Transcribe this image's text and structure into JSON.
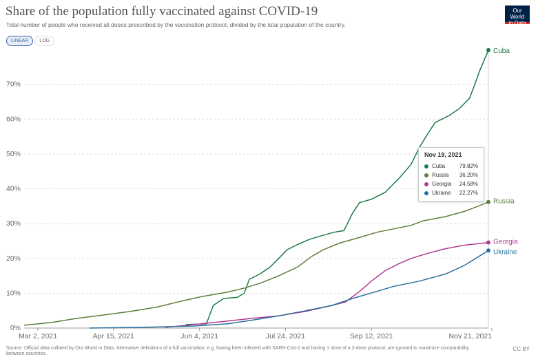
{
  "header": {
    "title": "Share of the population fully vaccinated against COVID-19",
    "subtitle": "Total number of people who received all doses prescribed by the vaccination protocol, divided by the total population of the country.",
    "logo_line1": "Our World",
    "logo_line2": "in Data"
  },
  "scale_toggle": {
    "linear": "LINEAR",
    "log": "LOG",
    "selected": "LINEAR"
  },
  "chart_data": {
    "type": "line",
    "title": "Share of the population fully vaccinated against COVID-19",
    "xlabel": "",
    "ylabel": "",
    "x_start": "2021-02-22",
    "x_end": "2021-11-19",
    "ylim": [
      0,
      80
    ],
    "grid": true,
    "y_ticks": [
      0,
      10,
      20,
      30,
      40,
      50,
      60,
      70
    ],
    "y_tick_labels": [
      "0%",
      "10%",
      "20%",
      "30%",
      "40%",
      "50%",
      "60%",
      "70%"
    ],
    "x_ticks": [
      "2021-03-02",
      "2021-04-15",
      "2021-06-04",
      "2021-07-24",
      "2021-09-12",
      "2021-11-21"
    ],
    "x_tick_labels": [
      "Mar 2, 2021",
      "Apr 15, 2021",
      "Jun 4, 2021",
      "Jul 24, 2021",
      "Sep 12, 2021",
      "Nov 21, 2021"
    ],
    "series": [
      {
        "name": "Cuba",
        "color": "#1c7a44",
        "points": [
          [
            "2021-05-27",
            1.0
          ],
          [
            "2021-06-08",
            1.2
          ],
          [
            "2021-06-12",
            6.5
          ],
          [
            "2021-06-18",
            8.5
          ],
          [
            "2021-06-26",
            8.8
          ],
          [
            "2021-06-30",
            10.0
          ],
          [
            "2021-07-03",
            14.0
          ],
          [
            "2021-07-09",
            15.5
          ],
          [
            "2021-07-15",
            17.5
          ],
          [
            "2021-07-20",
            20.0
          ],
          [
            "2021-07-25",
            22.5
          ],
          [
            "2021-07-31",
            24.0
          ],
          [
            "2021-08-07",
            25.5
          ],
          [
            "2021-08-14",
            26.5
          ],
          [
            "2021-08-21",
            27.5
          ],
          [
            "2021-08-27",
            28.0
          ],
          [
            "2021-09-01",
            33.0
          ],
          [
            "2021-09-05",
            36.0
          ],
          [
            "2021-09-12",
            37.0
          ],
          [
            "2021-09-20",
            39.0
          ],
          [
            "2021-09-28",
            43.0
          ],
          [
            "2021-10-05",
            47.0
          ],
          [
            "2021-10-10",
            52.0
          ],
          [
            "2021-10-15",
            56.0
          ],
          [
            "2021-10-19",
            59.0
          ],
          [
            "2021-10-27",
            61.0
          ],
          [
            "2021-11-02",
            63.0
          ],
          [
            "2021-11-08",
            66.0
          ],
          [
            "2021-11-10",
            68.5
          ],
          [
            "2021-11-14",
            74.0
          ],
          [
            "2021-11-19",
            79.82
          ]
        ]
      },
      {
        "name": "Russia",
        "color": "#5e7e3d",
        "points": [
          [
            "2021-02-22",
            0.8
          ],
          [
            "2021-03-10",
            1.6
          ],
          [
            "2021-03-25",
            2.8
          ],
          [
            "2021-04-10",
            3.8
          ],
          [
            "2021-04-25",
            4.8
          ],
          [
            "2021-05-10",
            6.0
          ],
          [
            "2021-05-25",
            7.8
          ],
          [
            "2021-06-05",
            9.0
          ],
          [
            "2021-06-20",
            10.3
          ],
          [
            "2021-07-01",
            11.6
          ],
          [
            "2021-07-10",
            13.0
          ],
          [
            "2021-07-20",
            15.0
          ],
          [
            "2021-07-31",
            17.5
          ],
          [
            "2021-08-08",
            20.5
          ],
          [
            "2021-08-15",
            22.5
          ],
          [
            "2021-08-25",
            24.5
          ],
          [
            "2021-09-05",
            26.0
          ],
          [
            "2021-09-15",
            27.5
          ],
          [
            "2021-09-25",
            28.5
          ],
          [
            "2021-10-05",
            29.5
          ],
          [
            "2021-10-12",
            30.8
          ],
          [
            "2021-10-25",
            32.0
          ],
          [
            "2021-11-05",
            33.5
          ],
          [
            "2021-11-12",
            34.8
          ],
          [
            "2021-11-19",
            36.2
          ]
        ]
      },
      {
        "name": "Georgia",
        "color": "#b13891",
        "points": [
          [
            "2021-05-15",
            0.2
          ],
          [
            "2021-06-01",
            1.0
          ],
          [
            "2021-06-20",
            2.0
          ],
          [
            "2021-07-05",
            2.8
          ],
          [
            "2021-07-20",
            3.5
          ],
          [
            "2021-08-05",
            4.8
          ],
          [
            "2021-08-20",
            6.5
          ],
          [
            "2021-08-28",
            7.5
          ],
          [
            "2021-09-05",
            10.5
          ],
          [
            "2021-09-12",
            13.5
          ],
          [
            "2021-09-20",
            16.5
          ],
          [
            "2021-09-28",
            18.5
          ],
          [
            "2021-10-05",
            20.0
          ],
          [
            "2021-10-15",
            21.5
          ],
          [
            "2021-10-25",
            22.8
          ],
          [
            "2021-11-05",
            23.8
          ],
          [
            "2021-11-19",
            24.58
          ]
        ]
      },
      {
        "name": "Ukraine",
        "color": "#286e9e",
        "points": [
          [
            "2021-04-01",
            0.0
          ],
          [
            "2021-05-01",
            0.2
          ],
          [
            "2021-06-01",
            0.6
          ],
          [
            "2021-06-20",
            1.2
          ],
          [
            "2021-07-05",
            2.3
          ],
          [
            "2021-07-20",
            3.5
          ],
          [
            "2021-08-05",
            5.0
          ],
          [
            "2021-08-20",
            6.5
          ],
          [
            "2021-09-01",
            8.5
          ],
          [
            "2021-09-15",
            10.5
          ],
          [
            "2021-09-25",
            12.0
          ],
          [
            "2021-10-10",
            13.5
          ],
          [
            "2021-10-25",
            15.5
          ],
          [
            "2021-11-05",
            18.0
          ],
          [
            "2021-11-19",
            22.27
          ]
        ]
      }
    ]
  },
  "tooltip": {
    "date": "Nov 19, 2021",
    "rows": [
      {
        "name": "Cuba",
        "value": "79.82%",
        "color": "#1c7a44"
      },
      {
        "name": "Russia",
        "value": "36.20%",
        "color": "#5e7e3d"
      },
      {
        "name": "Georgia",
        "value": "24.58%",
        "color": "#b13891"
      },
      {
        "name": "Ukraine",
        "value": "22.27%",
        "color": "#286e9e"
      }
    ]
  },
  "footer": {
    "source": "Source: Official data collated by Our World in Data. Alternative definitions of a full vaccination, e.g. having been infected with SARS-CoV-2 and having 1 dose of a 2-dose protocol, are ignored to maximize comparability between countries.",
    "license": "CC BY"
  }
}
